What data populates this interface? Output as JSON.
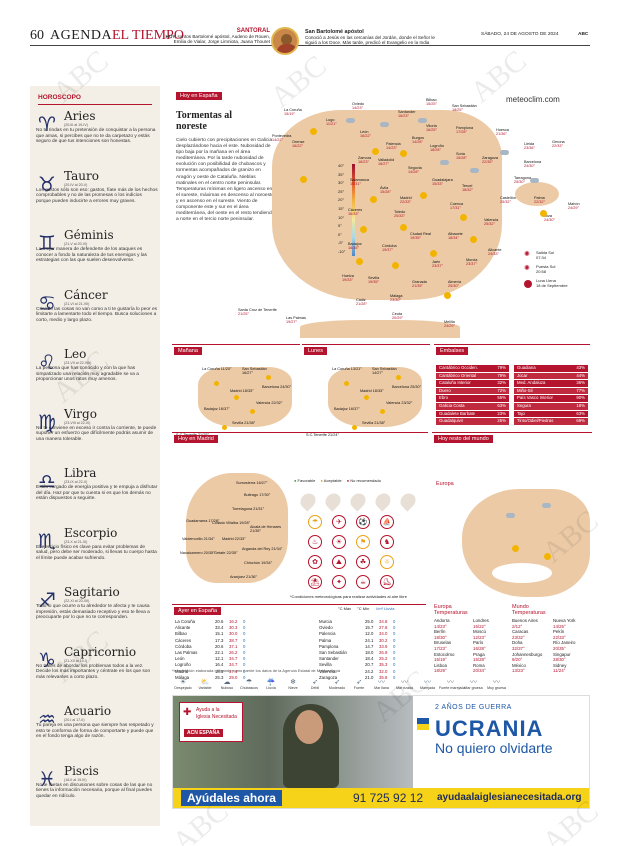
{
  "header": {
    "page_number": "60",
    "section_a": "AGENDA",
    "section_b": "EL TIEMPO",
    "date": "SÁBADO, 24 DE AGOSTO DE 2024",
    "paper": "ABC"
  },
  "santoral": {
    "label": "SANTORAL",
    "today_label": "HOY,",
    "text": "santos Bartolomé apóstol, Audeno de Rouen, Emilia de Vialar, Jorge Limniota, Juana Thouret",
    "saint_title": "San Bartolomé apóstol",
    "saint_text": "Conoció a Jesús en las cercanías del Jordán, donde el Señor le siguió a los Doce. Más tarde, predicó el Evangelio en la India"
  },
  "horoscopo": {
    "title": "HOROSCOPO",
    "signs": [
      {
        "glyph": "♈",
        "name": "Aries",
        "dates": "(20-III al 19-IV)",
        "text": "No te rindas en tu pretensión de conquistar a la persona que amas, si percibes que no te da carpetazo y estás seguro de que tus intenciones son honestas."
      },
      {
        "glyph": "♉",
        "name": "Tauro",
        "dates": "(20-IV al 20-V)",
        "text": "Los gastos sólo son eso: gastos, fíate más de los hechos comprobables y no de las promesas o los indicios porque pueden inducirte a errores muy graves."
      },
      {
        "glyph": "♊",
        "name": "Géminis",
        "dates": "(21-V al 20-VI)",
        "text": "La mejor manera de defenderte de los ataques es conocer a fondo la naturaleza de tus enemigos y las estrategias con las que suelen desenvolverse."
      },
      {
        "glyph": "♋",
        "name": "Cáncer",
        "dates": "(21-VI al 21-VII)",
        "text": "Cuando las cosas no van como a ti te gustaría lo peor es limitarte a lamentarte todo el tiempo. Busca soluciones a corto, medio y largo plazo."
      },
      {
        "glyph": "♌",
        "name": "Leo",
        "dates": "(23-VII al 22-VIII)",
        "text": "La persona que has conocido y con la que has simpatizado una relación muy agradable se va a proporcionar unos ratos muy amenos."
      },
      {
        "glyph": "♍",
        "name": "Virgo",
        "dates": "(23-VIII al 22-IX)",
        "text": "No te conviene en exceso ir contra la corriente, te puede suponer un esfuerzo que difícilmente podrás asumir de una manera tolerable."
      },
      {
        "glyph": "♎",
        "name": "Libra",
        "dates": "(23-IX al 22-X)",
        "text": "Estás cargado de energía positiva y te empuja a disfrutar del día. Haz por que tu cuenta si es que los demás no están dispuestos a seguirte."
      },
      {
        "glyph": "♏",
        "name": "Escorpio",
        "dates": "(23-X al 21-XI)",
        "text": "El ejercicio físico es clave para evitar problemas de salud, pero debe ser moderado, si llevas tu cuerpo hasta el límite puede acabar sufriendo."
      },
      {
        "glyph": "♐",
        "name": "Sagitario",
        "dates": "(22-XI al 20-XII)",
        "text": "Todo lo que ocurre a tu alrededor te afecta y te causa impresión, estás demasiado receptivo y eso te lleva a preocuparte por lo que no te corresponden."
      },
      {
        "glyph": "♑",
        "name": "Capricornio",
        "dates": "(21-XII al 19-I)",
        "text": "No trates de abordar los problemas todos a la vez. Decide los más importantes y céntrate en los que son más relevantes a corto plazo."
      },
      {
        "glyph": "♒",
        "name": "Acuario",
        "dates": "(20-I al 17-II)",
        "text": "Tu pareja es una persona que siempre has respetado y esto te conforma de forma de comportarte y puede que en el fondo tenga algo de razón."
      },
      {
        "glyph": "♓",
        "name": "Piscis",
        "dates": "(18-II al 19-III)",
        "text": "No te metas en discusiones sobre cosas de las que no tienes la información necesaria, porque al final puedes quedar en ridículo."
      }
    ]
  },
  "hoy_espana": {
    "label": "Hoy en España",
    "brand": "meteoclim.com",
    "headline": "Tormentas al noreste",
    "body": "Cielo cubierto con precipitaciones en Galicia desplazándose hacia el este. Nubosidad de tipo baja por la mañana en el área mediterránea. Por la tarde nubosidad de evolución con posibilidad de chubascos y tormentas acompañados de granizo en Aragón y oeste de Cataluña. Nieblas matinales en el centro norte peninsular. Temperaturas mínimas en ligero ascenso en el sureste, máximas en descenso al noroeste y en ascenso en el sureste. Viento de componente este y sur en el área mediterránea, del oeste en el resto tendiendo a norte en el tercio norte peninsular.",
    "temp_scale": [
      "40°",
      "35°",
      "30°",
      "25°",
      "20°",
      "15°",
      "10°",
      "5°",
      "0°",
      "-5°",
      "-10°"
    ],
    "sun": {
      "salida_label": "Salida Sol",
      "salida": "07:34",
      "puesta_label": "Puesta Sol",
      "puesta": "20:58",
      "luna_label": "Luna Llena",
      "luna": "18 de Septiembre"
    },
    "cities": [
      {
        "n": "La Coruña",
        "t": "15/19°"
      },
      {
        "n": "Oviedo",
        "t": "14/23°"
      },
      {
        "n": "Santander",
        "t": "16/23°"
      },
      {
        "n": "Bilbao",
        "t": "15/25°"
      },
      {
        "n": "San Sebastián",
        "t": "18/25°"
      },
      {
        "n": "Lugo",
        "t": "11/21°"
      },
      {
        "n": "Vitoria",
        "t": "16/25°"
      },
      {
        "n": "Pamplona",
        "t": "17/28°"
      },
      {
        "n": "Huesca",
        "t": "21/36°"
      },
      {
        "n": "Lleida",
        "t": "23/36°"
      },
      {
        "n": "Gerona",
        "t": "22/33°"
      },
      {
        "n": "Pontevedra",
        "t": "14/22°"
      },
      {
        "n": "León",
        "t": "16/22°"
      },
      {
        "n": "Palencia",
        "t": "14/23°"
      },
      {
        "n": "Burgos",
        "t": "14/28°"
      },
      {
        "n": "Logroño",
        "t": "18/28°"
      },
      {
        "n": "Soria",
        "t": "15/28°"
      },
      {
        "n": "Zaragoza",
        "t": "22/35°"
      },
      {
        "n": "Barcelona",
        "t": "24/30°"
      },
      {
        "n": "Orense",
        "t": "16/22°"
      },
      {
        "n": "Zamora",
        "t": "16/23°"
      },
      {
        "n": "Valladolid",
        "t": "16/27°"
      },
      {
        "n": "Segovia",
        "t": "14/28°"
      },
      {
        "n": "Tarragona",
        "t": "25/30°"
      },
      {
        "n": "Salamanca",
        "t": "15/31°"
      },
      {
        "n": "Ávila",
        "t": "15/28°"
      },
      {
        "n": "Guadalajara",
        "t": "15/33°"
      },
      {
        "n": "Teruel",
        "t": "18/32°"
      },
      {
        "n": "Castellón",
        "t": "25/32°"
      },
      {
        "n": "Madrid",
        "t": "22/33°"
      },
      {
        "n": "Cuenca",
        "t": "17/31°"
      },
      {
        "n": "Palma",
        "t": "22/32°"
      },
      {
        "n": "Mahón",
        "t": "24/29°"
      },
      {
        "n": "Cáceres",
        "t": "16/33°"
      },
      {
        "n": "Toledo",
        "t": "20/33°"
      },
      {
        "n": "Valencia",
        "t": "25/32°"
      },
      {
        "n": "Ibiza",
        "t": "24/30°"
      },
      {
        "n": "Ciudad Real",
        "t": "19/35°"
      },
      {
        "n": "Albacete",
        "t": "18/34°"
      },
      {
        "n": "Alicante",
        "t": "24/33°"
      },
      {
        "n": "Badajoz",
        "t": "16/35°"
      },
      {
        "n": "Córdoba",
        "t": "19/37°"
      },
      {
        "n": "Jaén",
        "t": "23/37°"
      },
      {
        "n": "Murcia",
        "t": "23/37°"
      },
      {
        "n": "Huelva",
        "t": "19/33°"
      },
      {
        "n": "Sevilla",
        "t": "19/35°"
      },
      {
        "n": "Granada",
        "t": "21/35°"
      },
      {
        "n": "Almería",
        "t": "25/30°"
      },
      {
        "n": "Málaga",
        "t": "23/30°"
      },
      {
        "n": "Cádiz",
        "t": "21/28°"
      },
      {
        "n": "Ceuta",
        "t": "20/29°"
      },
      {
        "n": "Melilla",
        "t": "24/29°"
      },
      {
        "n": "Santa Cruz de Tenerife",
        "t": "21/25°"
      },
      {
        "n": "Las Palmas",
        "t": "19/27°"
      }
    ]
  },
  "manana": {
    "label": "Mañana",
    "cities": [
      "La Coruña 11/20°",
      "San Sebastián 16/27°",
      "Barcelona 24/30°",
      "Madrid 18/33°",
      "Valencia 22/32°",
      "Badajoz 16/37°",
      "Sevilla 21/38°",
      "S.C.Tenerife 21/25°"
    ]
  },
  "lunes": {
    "label": "Lunes",
    "cities": [
      "La Coruña 13/21°",
      "San Sebastián 14/27°",
      "Barcelona 25/30°",
      "Madrid 18/33°",
      "Valencia 23/32°",
      "Badajoz 16/37°",
      "Sevilla 21/38°",
      "S.C.Tenerife 21/24°"
    ]
  },
  "embalses": {
    "label": "Embalses",
    "left": [
      {
        "n": "Cantábrico Occiden.",
        "v": "79%"
      },
      {
        "n": "Cantábrico Oriental",
        "v": "79%"
      },
      {
        "n": "Cataluña Interior",
        "v": "32%"
      },
      {
        "n": "Duero",
        "v": "72%"
      },
      {
        "n": "Ebro",
        "v": "56%"
      },
      {
        "n": "Galicia Costa",
        "v": "63%"
      },
      {
        "n": "Guadalete Barbate",
        "v": "23%"
      },
      {
        "n": "Guadalquivir",
        "v": "25%"
      }
    ],
    "right": [
      {
        "n": "Guadiana",
        "v": "43%"
      },
      {
        "n": "Júcar",
        "v": "44%"
      },
      {
        "n": "Med. Andaluza",
        "v": "36%"
      },
      {
        "n": "Miño-Sil",
        "v": "77%"
      },
      {
        "n": "País Vasco Interior",
        "v": "90%"
      },
      {
        "n": "Segura",
        "v": "18%"
      },
      {
        "n": "Tajo",
        "v": "63%"
      },
      {
        "n": "Tinto/Odiel/Piedras",
        "v": "69%"
      }
    ]
  },
  "hoy_madrid": {
    "label": "Hoy en Madrid",
    "legend": [
      "Favorable",
      "Aceptable",
      "No recomendado"
    ],
    "footnote": "*Condiciones meteorológicas para realizar actividades al aire libre",
    "cities": [
      "Somosierra 16/27°",
      "Buitrago 17/30°",
      "Torrelaguna 21/31°",
      "Guadarrama 17/28°",
      "Collado Villalba 19/28°",
      "Alcalá de Henares 21/35°",
      "Valdemorillo 21/34°",
      "Madrid 22/33°",
      "Navalcarnero 20/35°",
      "Getafe 22/35°",
      "Arganda del Rey 21/34°",
      "Chinchón 19/34°",
      "Aranjuez 21/36°"
    ]
  },
  "hoy_mundo": {
    "label": "Hoy resto del mundo",
    "region": "Europa"
  },
  "ayer": {
    "label": "Ayer en España",
    "cols": [
      "°C Máx",
      "°C Mín",
      "l/m² Lluvia"
    ],
    "rows_a": [
      [
        "La Coruña",
        "20.6",
        "16.2",
        "0"
      ],
      [
        "Alicante",
        "33.4",
        "30.3",
        "0"
      ],
      [
        "Bilbao",
        "15.1",
        "30.0",
        "0"
      ],
      [
        "Cáceres",
        "17.3",
        "38.7",
        "0"
      ],
      [
        "Córdoba",
        "20.6",
        "37.1",
        "0"
      ],
      [
        "Las Palmas",
        "22.1",
        "26.2",
        "0"
      ],
      [
        "León",
        "12.1",
        "34.7",
        "0"
      ],
      [
        "Logroño",
        "16.4",
        "34.7",
        "0"
      ],
      [
        "Madrid",
        "18.3",
        "37.4",
        "0"
      ],
      [
        "Málaga",
        "25.3",
        "29.0",
        "0"
      ]
    ],
    "rows_b": [
      [
        "Murcia",
        "25.0",
        "34.8",
        "0"
      ],
      [
        "Oviedo",
        "15.7",
        "27.8",
        "0"
      ],
      [
        "Palencia",
        "12.0",
        "34.0",
        "0"
      ],
      [
        "Palma",
        "24.1",
        "30.2",
        "0"
      ],
      [
        "Pamplona",
        "14.7",
        "33.9",
        "0"
      ],
      [
        "San Sebastián",
        "18.0",
        "26.9",
        "0"
      ],
      [
        "Santander",
        "18.4",
        "25.2",
        "0"
      ],
      [
        "Sevilla",
        "20.7",
        "35.3",
        "0"
      ],
      [
        "Valencia",
        "24.2",
        "32.0",
        "0"
      ],
      [
        "Zaragoza",
        "21.0",
        "35.8",
        "0"
      ]
    ],
    "note": "*Información elaborada utilizando como fuente los datos de la Agencia Estatal de Meteorología"
  },
  "europa": {
    "title": "Europa Temperaturas",
    "rows": [
      [
        "Andorra",
        "14/23°"
      ],
      [
        "Berlín",
        "18/30°"
      ],
      [
        "Bruselas",
        "17/23°"
      ],
      [
        "Estocolmo",
        "15/19°"
      ],
      [
        "Lisboa",
        "18/29°"
      ],
      [
        "Londres",
        "16/22°"
      ],
      [
        "Moscú",
        "12/23°"
      ],
      [
        "París",
        "16/28°"
      ],
      [
        "Praga",
        "15/28°"
      ],
      [
        "Roma",
        "20/34°"
      ]
    ]
  },
  "mundo": {
    "title": "Mundo Temperaturas",
    "rows": [
      [
        "Buenos Aires",
        "2/12°"
      ],
      [
        "Caracas",
        "23/32°"
      ],
      [
        "Doha",
        "32/37°"
      ],
      [
        "Johannesburgo",
        "9/20°"
      ],
      [
        "México",
        "13/23°"
      ],
      [
        "Nueva York",
        "14/25°"
      ],
      [
        "Pekín",
        "22/33°"
      ],
      [
        "Río Janeiro",
        "20/35°"
      ],
      [
        "Singapur",
        "28/30°"
      ],
      [
        "Sidney",
        "11/24°"
      ]
    ]
  },
  "legend_icons": [
    "Despejado",
    "Variable",
    "Nuboso",
    "Chubascos",
    "Lluvia",
    "Nieve",
    "Débil",
    "Moderado",
    "Fuerte",
    "Mar llana",
    "Mar rizada",
    "Marejada",
    "Fuerte marejada",
    "Mar gruesa",
    "Muy gruesa"
  ],
  "ad": {
    "org1": "Ayuda a la",
    "org2": "Iglesia Necesitada",
    "acn": "ACN ESPAÑA",
    "years": "2 AÑOS DE GUERRA",
    "country": "UCRANIA",
    "slogan": "No quiero olvidarte",
    "cta": "Ayúdales ahora",
    "phone": "91 725 92 12",
    "web": "ayudaalaiglesianecesitada.org"
  },
  "watermark": "ABC",
  "colors": {
    "accent": "#b4142d",
    "navy": "#24306a",
    "map": "#e9d3b8",
    "ad_blue": "#1d57a6",
    "ad_yellow": "#f6d219"
  }
}
